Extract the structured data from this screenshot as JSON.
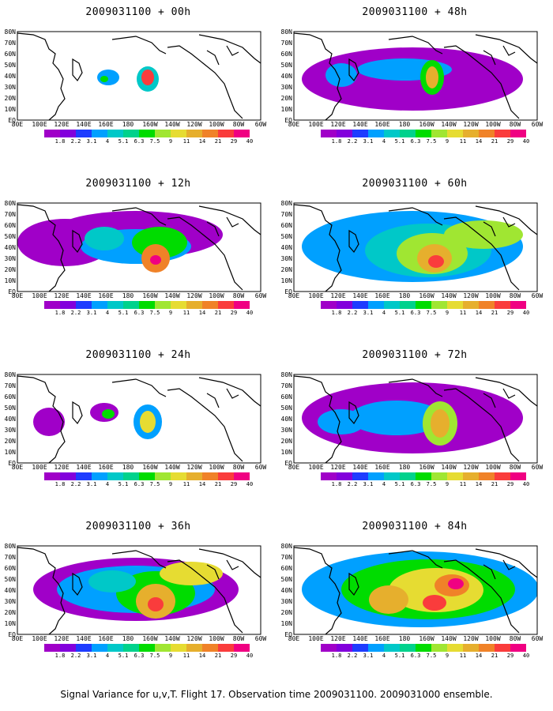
{
  "panels": [
    {
      "title": "2009031100 + 00h",
      "level": 0
    },
    {
      "title": "2009031100 + 48h",
      "level": 4
    },
    {
      "title": "2009031100 + 12h",
      "level": 1
    },
    {
      "title": "2009031100 + 60h",
      "level": 5
    },
    {
      "title": "2009031100 + 24h",
      "level": 2
    },
    {
      "title": "2009031100 + 72h",
      "level": 6
    },
    {
      "title": "2009031100 + 36h",
      "level": 3
    },
    {
      "title": "2009031100 + 84h",
      "level": 7
    }
  ],
  "lat_labels": [
    "80N",
    "70N",
    "60N",
    "50N",
    "40N",
    "30N",
    "20N",
    "10N",
    "EQ"
  ],
  "lon_labels": [
    "80E",
    "100E",
    "120E",
    "140E",
    "160E",
    "180",
    "160W",
    "140W",
    "120W",
    "100W",
    "80W",
    "60W"
  ],
  "colorbar": {
    "ticks": [
      "1.8",
      "2.2",
      "3.1",
      "4",
      "5.1",
      "6.3",
      "7.5",
      "9",
      "11",
      "14",
      "21",
      "29",
      "40"
    ],
    "colors": [
      "#a000c8",
      "#8200dc",
      "#1e3cff",
      "#00a0ff",
      "#00c8c8",
      "#00d28c",
      "#00dc00",
      "#a0e632",
      "#e6dc32",
      "#e6af2d",
      "#f08228",
      "#fa3c3c",
      "#f00082"
    ]
  },
  "footer": "Signal Variance for u,v,T. Flight 17. Observation time 2009031100. 2009031000 ensemble."
}
